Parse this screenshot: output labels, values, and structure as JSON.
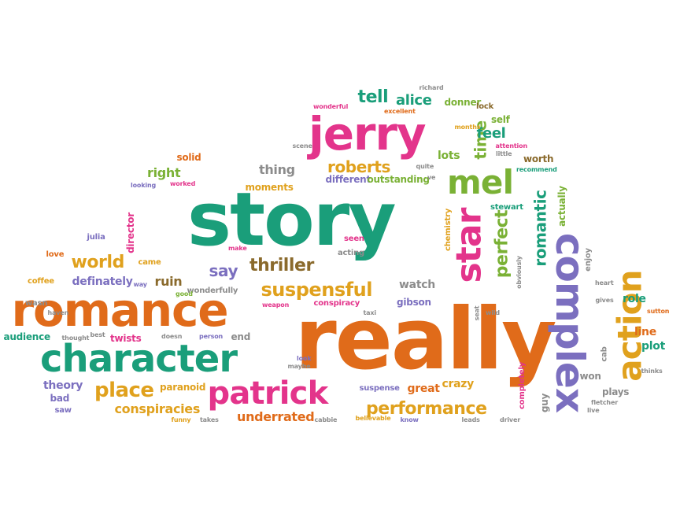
{
  "palette": {
    "green": "#1a9e7a",
    "orange": "#e06b1a",
    "pink": "#e3348b",
    "purple": "#7b6fbf",
    "olive": "#7ab135",
    "gold": "#e0a11d",
    "brown": "#8a6a2c",
    "gray": "#8c8c8c"
  },
  "words": [
    {
      "text": "really",
      "weight": 110,
      "color": "orange"
    },
    {
      "text": "story",
      "weight": 100,
      "color": "green"
    },
    {
      "text": "romance",
      "weight": 72,
      "color": "orange"
    },
    {
      "text": "character",
      "weight": 60,
      "color": "green"
    },
    {
      "text": "jerry",
      "weight": 62,
      "color": "pink"
    },
    {
      "text": "complex",
      "weight": 52,
      "color": "purple"
    },
    {
      "text": "action",
      "weight": 44,
      "color": "gold"
    },
    {
      "text": "star",
      "weight": 48,
      "color": "pink"
    },
    {
      "text": "mel",
      "weight": 42,
      "color": "olive"
    },
    {
      "text": "patrick",
      "weight": 42,
      "color": "pink"
    },
    {
      "text": "suspensful",
      "weight": 28,
      "color": "gold"
    },
    {
      "text": "performance",
      "weight": 26,
      "color": "gold"
    },
    {
      "text": "perfect",
      "weight": 26,
      "color": "olive"
    },
    {
      "text": "place",
      "weight": 26,
      "color": "gold"
    },
    {
      "text": "romantic",
      "weight": 24,
      "color": "green"
    },
    {
      "text": "world",
      "weight": 22,
      "color": "gold"
    },
    {
      "text": "thriller",
      "weight": 22,
      "color": "brown"
    },
    {
      "text": "roberts",
      "weight": 22,
      "color": "gold"
    },
    {
      "text": "tell",
      "weight": 22,
      "color": "green"
    },
    {
      "text": "alice",
      "weight": 20,
      "color": "green"
    },
    {
      "text": "say",
      "weight": 20,
      "color": "purple"
    },
    {
      "text": "time",
      "weight": 20,
      "color": "olive"
    },
    {
      "text": "feel",
      "weight": 18,
      "color": "green"
    },
    {
      "text": "conspiracies",
      "weight": 18,
      "color": "gold"
    },
    {
      "text": "thing",
      "weight": 16,
      "color": "gray"
    },
    {
      "text": "right",
      "weight": 16,
      "color": "olive"
    },
    {
      "text": "ruin",
      "weight": 16,
      "color": "brown"
    },
    {
      "text": "underrated",
      "weight": 16,
      "color": "orange"
    },
    {
      "text": "theory",
      "weight": 16,
      "color": "purple"
    },
    {
      "text": "definately",
      "weight": 14,
      "color": "purple"
    },
    {
      "text": "watch",
      "weight": 14,
      "color": "gray"
    },
    {
      "text": "donner",
      "weight": 14,
      "color": "olive"
    },
    {
      "text": "lots",
      "weight": 14,
      "color": "olive"
    },
    {
      "text": "crazy",
      "weight": 14,
      "color": "gold"
    },
    {
      "text": "great",
      "weight": 14,
      "color": "orange"
    },
    {
      "text": "role",
      "weight": 14,
      "color": "green"
    },
    {
      "text": "plot",
      "weight": 14,
      "color": "green"
    },
    {
      "text": "line",
      "weight": 14,
      "color": "orange"
    },
    {
      "text": "plays",
      "weight": 12,
      "color": "gray"
    },
    {
      "text": "won",
      "weight": 12,
      "color": "gray"
    },
    {
      "text": "guy",
      "weight": 12,
      "color": "gray"
    },
    {
      "text": "bad",
      "weight": 12,
      "color": "purple"
    },
    {
      "text": "saw",
      "weight": 10,
      "color": "purple"
    },
    {
      "text": "gibson",
      "weight": 12,
      "color": "purple"
    },
    {
      "text": "paranoid",
      "weight": 12,
      "color": "gold"
    },
    {
      "text": "twists",
      "weight": 12,
      "color": "pink"
    },
    {
      "text": "audience",
      "weight": 12,
      "color": "green"
    },
    {
      "text": "end",
      "weight": 12,
      "color": "gray"
    },
    {
      "text": "self",
      "weight": 12,
      "color": "olive"
    },
    {
      "text": "worth",
      "weight": 12,
      "color": "brown"
    },
    {
      "text": "solid",
      "weight": 12,
      "color": "orange"
    },
    {
      "text": "different",
      "weight": 12,
      "color": "purple"
    },
    {
      "text": "outstanding",
      "weight": 12,
      "color": "olive"
    },
    {
      "text": "moments",
      "weight": 12,
      "color": "gold"
    },
    {
      "text": "director",
      "weight": 12,
      "color": "pink"
    },
    {
      "text": "julia",
      "weight": 10,
      "color": "purple"
    },
    {
      "text": "love",
      "weight": 10,
      "color": "orange"
    },
    {
      "text": "coffee",
      "weight": 10,
      "color": "gold"
    },
    {
      "text": "came",
      "weight": 10,
      "color": "gold"
    },
    {
      "text": "actually",
      "weight": 12,
      "color": "olive"
    },
    {
      "text": "chemistry",
      "weight": 10,
      "color": "gold"
    },
    {
      "text": "stewart",
      "weight": 10,
      "color": "green"
    },
    {
      "text": "enjoy",
      "weight": 10,
      "color": "gray"
    },
    {
      "text": "cab",
      "weight": 10,
      "color": "gray"
    },
    {
      "text": "completely",
      "weight": 10,
      "color": "pink"
    },
    {
      "text": "suspense",
      "weight": 10,
      "color": "purple"
    },
    {
      "text": "conspiracy",
      "weight": 10,
      "color": "pink"
    },
    {
      "text": "wonderfully",
      "weight": 10,
      "color": "gray"
    },
    {
      "text": "acting",
      "weight": 10,
      "color": "gray"
    },
    {
      "text": "seen",
      "weight": 10,
      "color": "pink"
    },
    {
      "text": "lock",
      "weight": 10,
      "color": "brown"
    },
    {
      "text": "richard",
      "weight": 8,
      "color": "gray"
    },
    {
      "text": "excellent",
      "weight": 8,
      "color": "orange"
    },
    {
      "text": "wonderful",
      "weight": 8,
      "color": "pink"
    },
    {
      "text": "months",
      "weight": 8,
      "color": "gold"
    },
    {
      "text": "attention",
      "weight": 8,
      "color": "pink"
    },
    {
      "text": "little",
      "weight": 8,
      "color": "gray"
    },
    {
      "text": "recommend",
      "weight": 8,
      "color": "green"
    },
    {
      "text": "quite",
      "weight": 8,
      "color": "gray"
    },
    {
      "text": "ve",
      "weight": 8,
      "color": "gray"
    },
    {
      "text": "scene",
      "weight": 8,
      "color": "gray"
    },
    {
      "text": "looking",
      "weight": 8,
      "color": "purple"
    },
    {
      "text": "worked",
      "weight": 8,
      "color": "pink"
    },
    {
      "text": "make",
      "weight": 8,
      "color": "pink"
    },
    {
      "text": "way",
      "weight": 8,
      "color": "purple"
    },
    {
      "text": "good",
      "weight": 8,
      "color": "olive"
    },
    {
      "text": "wasn",
      "weight": 10,
      "color": "gray"
    },
    {
      "text": "haven",
      "weight": 8,
      "color": "gray"
    },
    {
      "text": "thought",
      "weight": 8,
      "color": "gray"
    },
    {
      "text": "best",
      "weight": 8,
      "color": "gray"
    },
    {
      "text": "doesn",
      "weight": 8,
      "color": "gray"
    },
    {
      "text": "person",
      "weight": 8,
      "color": "purple"
    },
    {
      "text": "weapon",
      "weight": 8,
      "color": "pink"
    },
    {
      "text": "taxi",
      "weight": 8,
      "color": "gray"
    },
    {
      "text": "look",
      "weight": 8,
      "color": "purple"
    },
    {
      "text": "maybe",
      "weight": 8,
      "color": "gray"
    },
    {
      "text": "seat",
      "weight": 8,
      "color": "gray"
    },
    {
      "text": "wild",
      "weight": 8,
      "color": "gray"
    },
    {
      "text": "obviously",
      "weight": 8,
      "color": "gray"
    },
    {
      "text": "heart",
      "weight": 8,
      "color": "gray"
    },
    {
      "text": "gives",
      "weight": 8,
      "color": "gray"
    },
    {
      "text": "sutton",
      "weight": 8,
      "color": "orange"
    },
    {
      "text": "thinks",
      "weight": 8,
      "color": "gray"
    },
    {
      "text": "fletcher",
      "weight": 8,
      "color": "gray"
    },
    {
      "text": "live",
      "weight": 8,
      "color": "gray"
    },
    {
      "text": "funny",
      "weight": 8,
      "color": "gold"
    },
    {
      "text": "takes",
      "weight": 8,
      "color": "gray"
    },
    {
      "text": "cabbie",
      "weight": 8,
      "color": "gray"
    },
    {
      "text": "believable",
      "weight": 8,
      "color": "gold"
    },
    {
      "text": "know",
      "weight": 8,
      "color": "purple"
    },
    {
      "text": "leads",
      "weight": 8,
      "color": "gray"
    },
    {
      "text": "driver",
      "weight": 8,
      "color": "gray"
    }
  ]
}
